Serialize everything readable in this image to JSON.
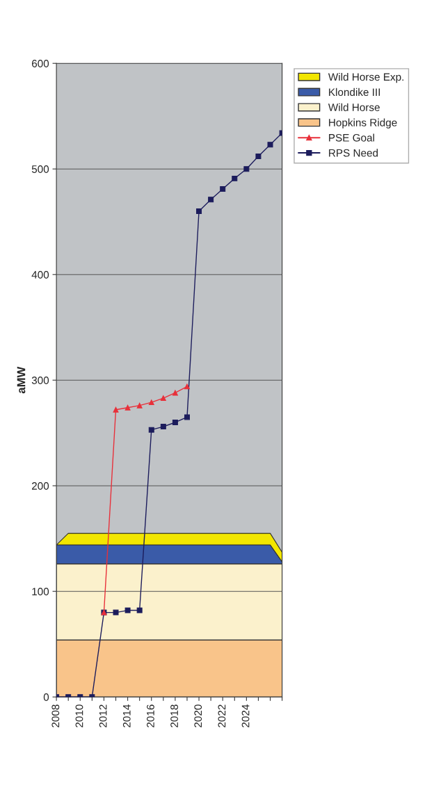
{
  "chart_data": {
    "type": "area",
    "ylabel": "aMW",
    "stacked": true,
    "x": [
      2008,
      2009,
      2010,
      2011,
      2012,
      2013,
      2014,
      2015,
      2016,
      2017,
      2018,
      2019,
      2020,
      2021,
      2022,
      2023,
      2024,
      2025,
      2026,
      2027
    ],
    "series": [
      {
        "name": "Hopkins Ridge",
        "color": "#f9c48a",
        "values": [
          54,
          54,
          54,
          54,
          54,
          54,
          54,
          54,
          54,
          54,
          54,
          54,
          54,
          54,
          54,
          54,
          54,
          54,
          54,
          54
        ]
      },
      {
        "name": "Wild Horse",
        "color": "#fbf1cc",
        "values": [
          72,
          72,
          72,
          72,
          72,
          72,
          72,
          72,
          72,
          72,
          72,
          72,
          72,
          72,
          72,
          72,
          72,
          72,
          72,
          72
        ]
      },
      {
        "name": "Klondike III",
        "color": "#3a5ba8",
        "values": [
          18,
          18,
          18,
          18,
          18,
          18,
          18,
          18,
          18,
          18,
          18,
          18,
          18,
          18,
          18,
          18,
          18,
          18,
          18,
          2
        ]
      },
      {
        "name": "Wild Horse Exp.",
        "color": "#f2e600",
        "values": [
          0,
          11,
          11,
          11,
          11,
          11,
          11,
          11,
          11,
          11,
          11,
          11,
          11,
          11,
          11,
          11,
          11,
          11,
          11,
          9
        ]
      },
      {
        "name": "PSE Goal",
        "type": "line",
        "color": "#e8303a",
        "marker": "triangle",
        "x": [
          2012,
          2013,
          2014,
          2015,
          2016,
          2017,
          2018,
          2019
        ],
        "values": [
          80,
          272,
          274,
          276,
          279,
          283,
          288,
          294
        ]
      },
      {
        "name": "RPS Need",
        "type": "line",
        "color": "#1c1c5c",
        "marker": "square",
        "values": [
          0,
          0,
          0,
          0,
          80,
          80,
          82,
          82,
          253,
          256,
          260,
          265,
          460,
          471,
          481,
          491,
          500,
          512,
          523,
          534
        ]
      }
    ],
    "xlim": [
      2008,
      2027
    ],
    "xticks": [
      2008,
      {
        "value": 2009,
        "label": null
      },
      2010,
      {
        "value": 2011,
        "label": null
      },
      2012,
      {
        "value": 2013,
        "label": null
      },
      2014,
      {
        "value": 2015,
        "label": null
      },
      2016,
      {
        "value": 2017,
        "label": null
      },
      2018,
      {
        "value": 2019,
        "label": null
      },
      2020,
      {
        "value": 2021,
        "label": null
      },
      2022,
      {
        "value": 2023,
        "label": null
      },
      2024,
      {
        "value": 2025,
        "label": null
      },
      {
        "value": 2026,
        "label": null
      },
      {
        "value": 2027,
        "label": null
      }
    ],
    "ylim": [
      0,
      600
    ],
    "yticks": [
      0,
      100,
      200,
      300,
      400,
      500,
      600
    ],
    "grid": "y",
    "legend": "right"
  }
}
